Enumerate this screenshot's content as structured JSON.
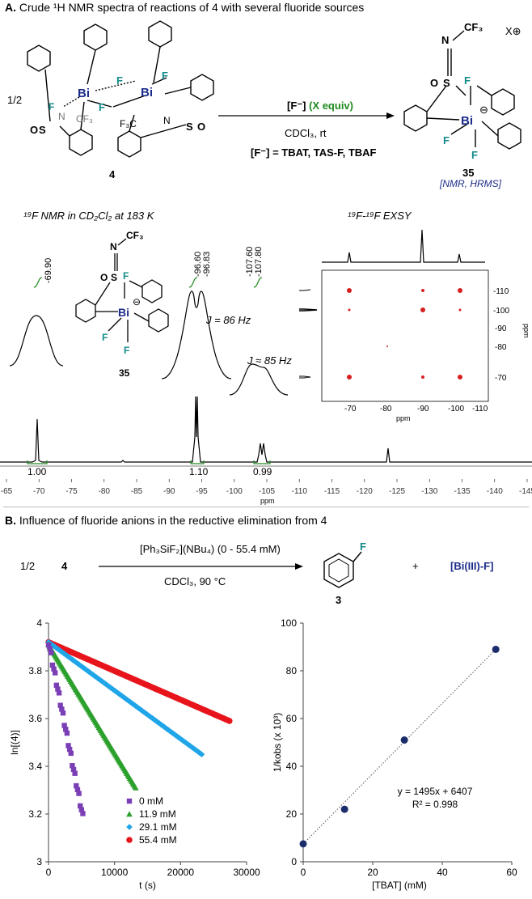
{
  "panel_a": {
    "label": "A.",
    "heading": "Crude ¹H NMR spectra of reactions of 4 with several fluoride sources",
    "reagent": "[F⁻]",
    "reagent_equiv": "(X equiv)",
    "conditions": "CDCl₃, rt",
    "fluoride_sources": "[F⁻] = TBAT,  TAS-F,  TBAF",
    "half": "1/2",
    "compound_start": "4",
    "compound_product": "35",
    "product_charge": "X⊕",
    "product_note": "[NMR, HRMS]",
    "atoms": {
      "bi": "Bi",
      "f": "F",
      "s": "S",
      "n": "N",
      "o": "O",
      "cf3": "CF₃",
      "f3c": "F₃C",
      "minus": "⊖"
    },
    "spectrum_title": "¹⁹F NMR in CD₂Cl₂ at 183 K",
    "exsy_title": "¹⁹F-¹⁹F EXSY",
    "peak_labels": [
      "-69.90",
      "-96.60",
      "-96.83",
      "-107.60",
      "-107.80"
    ],
    "coupling_1": "J = 86 Hz",
    "coupling_2": "J ≈ 85 Hz",
    "integrals": [
      "1.00",
      "1.10",
      "0.99"
    ],
    "spectrum_axis": {
      "ticks": [
        "-65",
        "-70",
        "-75",
        "-80",
        "-85",
        "-90",
        "-95",
        "-100",
        "-105",
        "-110",
        "-115",
        "-120",
        "-125",
        "-130",
        "-135",
        "-140",
        "-145"
      ],
      "label": "ppm"
    },
    "exsy_axis": {
      "x_ticks": [
        "-70",
        "-80",
        "-90",
        "-100",
        "-110"
      ],
      "y_ticks": [
        "-110",
        "-100",
        "-90",
        "-80",
        "-70"
      ],
      "x_label": "ppm",
      "y_label": "ppm"
    }
  },
  "panel_b": {
    "label": "B.",
    "heading": "Influence of fluoride anions in the reductive elimination from 4",
    "half": "1/2",
    "compound_start": "4",
    "reagent": "[Ph₃SiF₂](NBu₄) (0 - 55.4 mM)",
    "conditions": "CDCl₃, 90 °C",
    "product_number": "3",
    "plus": "+",
    "byproduct": "[Bi(III)-F]",
    "fluorine": "F"
  },
  "colors": {
    "teal": "#138a8a",
    "green": "#1f8a1f",
    "navy": "#1b2c8a",
    "exsy": "#d62020"
  },
  "chart_data": [
    {
      "type": "scatter",
      "xlabel": "t (s)",
      "ylabel": "ln[(4)]",
      "xlim": [
        0,
        30000
      ],
      "ylim": [
        3,
        4
      ],
      "x_ticks": [
        "0",
        "10000",
        "20000",
        "30000"
      ],
      "y_ticks": [
        "3",
        "3.2",
        "3.4",
        "3.6",
        "3.8",
        "4"
      ],
      "legend_position": "bottom-right",
      "series": [
        {
          "name": "0 mM",
          "color": "#7b3fb5",
          "marker": "square",
          "x0": 0,
          "y0": 3.92,
          "x1": 5200,
          "y1": 3.19
        },
        {
          "name": "11.9 mM",
          "color": "#2ca02c",
          "marker": "triangle",
          "x0": 0,
          "y0": 3.91,
          "x1": 13200,
          "y1": 3.31
        },
        {
          "name": "29.1 mM",
          "color": "#1fa5e8",
          "marker": "diamond",
          "x0": 0,
          "y0": 3.92,
          "x1": 23200,
          "y1": 3.45
        },
        {
          "name": "55.4 mM",
          "color": "#e8141c",
          "marker": "circle",
          "x0": 0,
          "y0": 3.92,
          "x1": 27400,
          "y1": 3.59
        }
      ]
    },
    {
      "type": "scatter",
      "xlabel": "[TBAT] (mM)",
      "ylabel": "1/kobs (x 10³)",
      "xlim": [
        0,
        60
      ],
      "ylim": [
        0,
        100
      ],
      "x_ticks": [
        "0",
        "20",
        "40",
        "60"
      ],
      "y_ticks": [
        "0",
        "20",
        "40",
        "60",
        "80",
        "100"
      ],
      "x": [
        0,
        11.9,
        29.1,
        55.4
      ],
      "y": [
        7.5,
        22,
        51,
        89
      ],
      "color": "#1b2c6b",
      "fit_equation": "y = 1495x + 6407",
      "r_squared": "R² = 0.998"
    }
  ]
}
